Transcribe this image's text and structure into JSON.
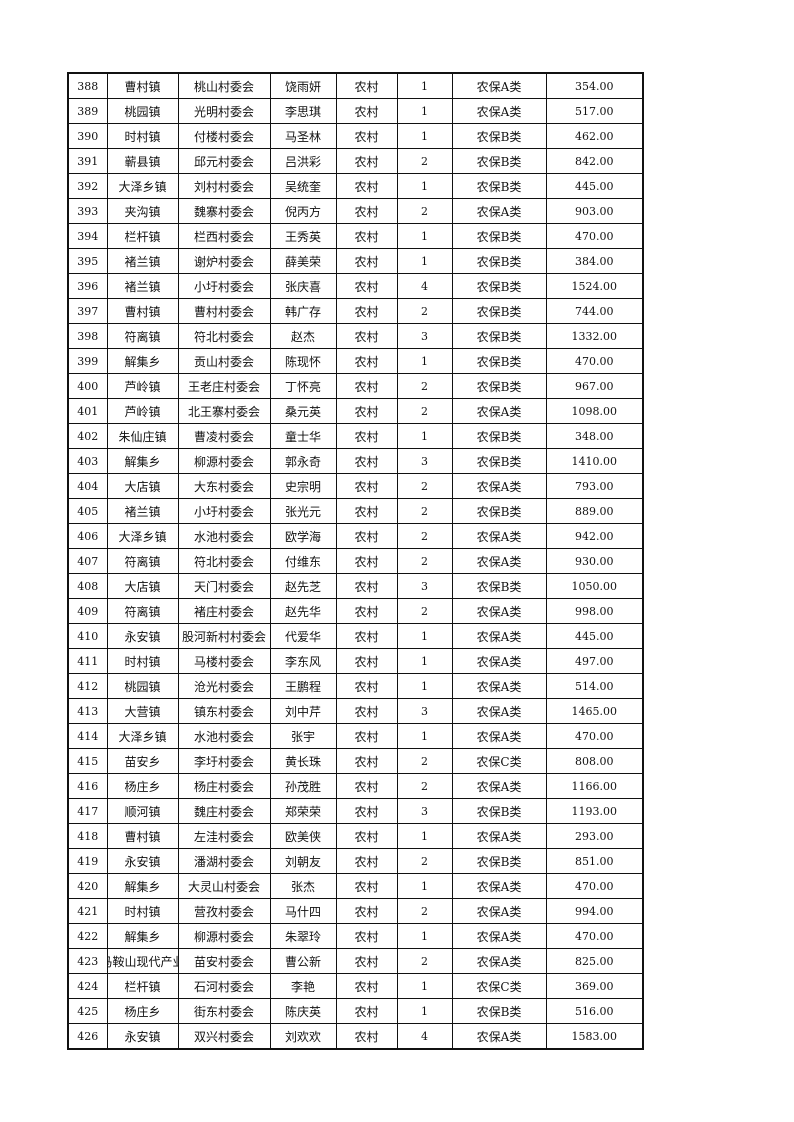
{
  "rows": [
    [
      "388",
      "曹村镇",
      "桃山村委会",
      "饶雨妍",
      "农村",
      "1",
      "农保A类",
      "354.00"
    ],
    [
      "389",
      "桃园镇",
      "光明村委会",
      "李思琪",
      "农村",
      "1",
      "农保A类",
      "517.00"
    ],
    [
      "390",
      "时村镇",
      "付楼村委会",
      "马圣林",
      "农村",
      "1",
      "农保B类",
      "462.00"
    ],
    [
      "391",
      "蕲县镇",
      "邱元村委会",
      "吕洪彩",
      "农村",
      "2",
      "农保B类",
      "842.00"
    ],
    [
      "392",
      "大泽乡镇",
      "刘村村委会",
      "吴统奎",
      "农村",
      "1",
      "农保B类",
      "445.00"
    ],
    [
      "393",
      "夹沟镇",
      "魏寨村委会",
      "倪丙方",
      "农村",
      "2",
      "农保A类",
      "903.00"
    ],
    [
      "394",
      "栏杆镇",
      "栏西村委会",
      "王秀英",
      "农村",
      "1",
      "农保B类",
      "470.00"
    ],
    [
      "395",
      "褚兰镇",
      "谢炉村委会",
      "薛美荣",
      "农村",
      "1",
      "农保B类",
      "384.00"
    ],
    [
      "396",
      "褚兰镇",
      "小圩村委会",
      "张庆喜",
      "农村",
      "4",
      "农保B类",
      "1524.00"
    ],
    [
      "397",
      "曹村镇",
      "曹村村委会",
      "韩广存",
      "农村",
      "2",
      "农保B类",
      "744.00"
    ],
    [
      "398",
      "符离镇",
      "符北村委会",
      "赵杰",
      "农村",
      "3",
      "农保B类",
      "1332.00"
    ],
    [
      "399",
      "解集乡",
      "贡山村委会",
      "陈现怀",
      "农村",
      "1",
      "农保B类",
      "470.00"
    ],
    [
      "400",
      "芦岭镇",
      "王老庄村委会",
      "丁怀亮",
      "农村",
      "2",
      "农保B类",
      "967.00"
    ],
    [
      "401",
      "芦岭镇",
      "北王寨村委会",
      "桑元英",
      "农村",
      "2",
      "农保A类",
      "1098.00"
    ],
    [
      "402",
      "朱仙庄镇",
      "曹凌村委会",
      "童士华",
      "农村",
      "1",
      "农保B类",
      "348.00"
    ],
    [
      "403",
      "解集乡",
      "柳源村委会",
      "郭永奇",
      "农村",
      "3",
      "农保B类",
      "1410.00"
    ],
    [
      "404",
      "大店镇",
      "大东村委会",
      "史宗明",
      "农村",
      "2",
      "农保A类",
      "793.00"
    ],
    [
      "405",
      "褚兰镇",
      "小圩村委会",
      "张光元",
      "农村",
      "2",
      "农保B类",
      "889.00"
    ],
    [
      "406",
      "大泽乡镇",
      "水池村委会",
      "欧学海",
      "农村",
      "2",
      "农保A类",
      "942.00"
    ],
    [
      "407",
      "符离镇",
      "符北村委会",
      "付维东",
      "农村",
      "2",
      "农保A类",
      "930.00"
    ],
    [
      "408",
      "大店镇",
      "天门村委会",
      "赵先芝",
      "农村",
      "3",
      "农保B类",
      "1050.00"
    ],
    [
      "409",
      "符离镇",
      "褚庄村委会",
      "赵先华",
      "农村",
      "2",
      "农保A类",
      "998.00"
    ],
    [
      "410",
      "永安镇",
      "股河新村村委会",
      "代爱华",
      "农村",
      "1",
      "农保A类",
      "445.00"
    ],
    [
      "411",
      "时村镇",
      "马楼村委会",
      "李东风",
      "农村",
      "1",
      "农保A类",
      "497.00"
    ],
    [
      "412",
      "桃园镇",
      "沧光村委会",
      "王鹏程",
      "农村",
      "1",
      "农保A类",
      "514.00"
    ],
    [
      "413",
      "大营镇",
      "镇东村委会",
      "刘中芹",
      "农村",
      "3",
      "农保A类",
      "1465.00"
    ],
    [
      "414",
      "大泽乡镇",
      "水池村委会",
      "张宇",
      "农村",
      "1",
      "农保A类",
      "470.00"
    ],
    [
      "415",
      "苗安乡",
      "李圩村委会",
      "黄长珠",
      "农村",
      "2",
      "农保C类",
      "808.00"
    ],
    [
      "416",
      "杨庄乡",
      "杨庄村委会",
      "孙茂胜",
      "农村",
      "2",
      "农保A类",
      "1166.00"
    ],
    [
      "417",
      "顺河镇",
      "魏庄村委会",
      "郑荣荣",
      "农村",
      "3",
      "农保B类",
      "1193.00"
    ],
    [
      "418",
      "曹村镇",
      "左洼村委会",
      "欧美侠",
      "农村",
      "1",
      "农保A类",
      "293.00"
    ],
    [
      "419",
      "永安镇",
      "潘湖村委会",
      "刘朝友",
      "农村",
      "2",
      "农保B类",
      "851.00"
    ],
    [
      "420",
      "解集乡",
      "大灵山村委会",
      "张杰",
      "农村",
      "1",
      "农保A类",
      "470.00"
    ],
    [
      "421",
      "时村镇",
      "营孜村委会",
      "马什四",
      "农村",
      "2",
      "农保A类",
      "994.00"
    ],
    [
      "422",
      "解集乡",
      "柳源村委会",
      "朱翠玲",
      "农村",
      "1",
      "农保A类",
      "470.00"
    ],
    [
      "423",
      "马鞍山现代产业",
      "苗安村委会",
      "曹公新",
      "农村",
      "2",
      "农保A类",
      "825.00"
    ],
    [
      "424",
      "栏杆镇",
      "石河村委会",
      "李艳",
      "农村",
      "1",
      "农保C类",
      "369.00"
    ],
    [
      "425",
      "杨庄乡",
      "街东村委会",
      "陈庆英",
      "农村",
      "1",
      "农保B类",
      "516.00"
    ],
    [
      "426",
      "永安镇",
      "双兴村委会",
      "刘欢欢",
      "农村",
      "4",
      "农保A类",
      "1583.00"
    ]
  ]
}
